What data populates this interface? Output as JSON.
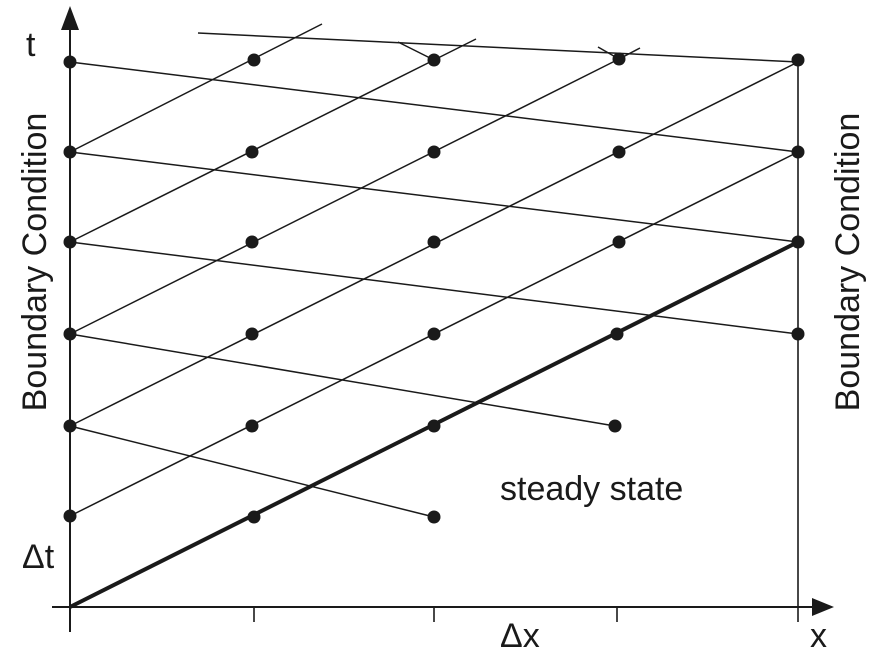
{
  "labels": {
    "t_axis": "t",
    "x_axis": "x",
    "dt": "Δt",
    "dx": "Δx",
    "steady_state": "steady state",
    "boundary_left": "Boundary Condition",
    "boundary_right": "Boundary Condition"
  },
  "colors": {
    "ink": "#1a1a1a",
    "background": "#ffffff"
  }
}
